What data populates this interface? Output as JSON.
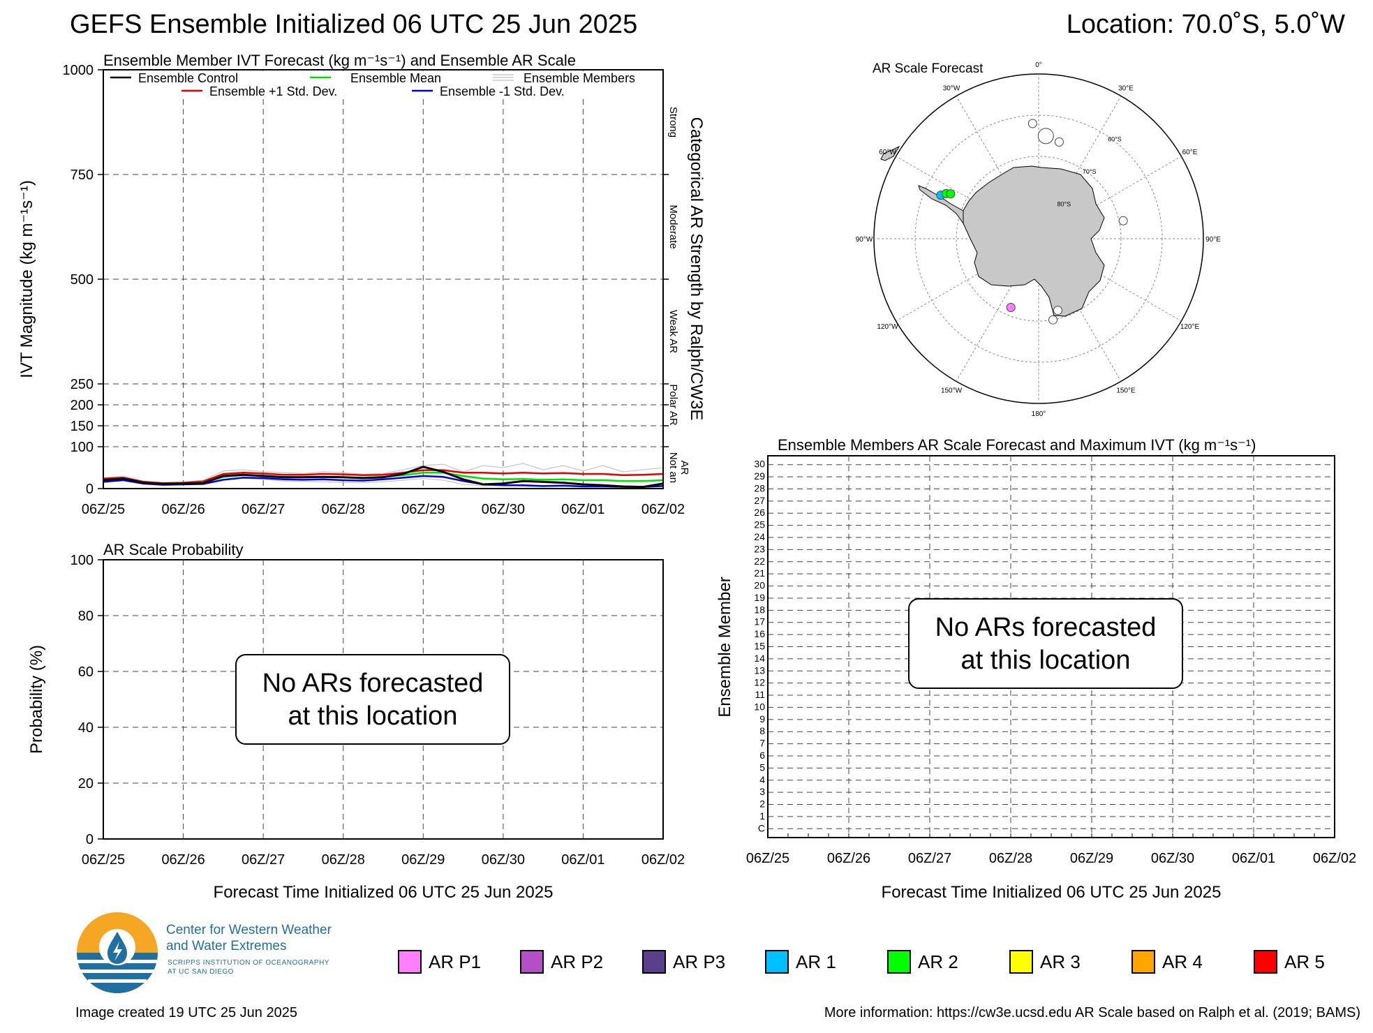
{
  "header": {
    "title": "GEFS Ensemble Initialized 06 UTC 25 Jun 2025",
    "location": "Location: 70.0˚S, 5.0˚W"
  },
  "footer": {
    "created": "Image created 19 UTC 25 Jun 2025",
    "more_info": "More information: https://cw3e.ucsd.edu AR Scale based on Ralph et al. (2019; BAMS)",
    "logo": {
      "line1": "Center for Western Weather",
      "line2": "and Water Extremes",
      "line3": "SCRIPPS INSTITUTION OF OCEANOGRAPHY",
      "line4": "AT UC SAN DIEGO"
    }
  },
  "ar_legend": [
    {
      "label": "AR P1",
      "color": "#ff80ff"
    },
    {
      "label": "AR P2",
      "color": "#b44fc8"
    },
    {
      "label": "AR P3",
      "color": "#5a3f8c"
    },
    {
      "label": "AR 1",
      "color": "#00bfff"
    },
    {
      "label": "AR 2",
      "color": "#00ff00"
    },
    {
      "label": "AR 3",
      "color": "#ffff00"
    },
    {
      "label": "AR 4",
      "color": "#ffa500"
    },
    {
      "label": "AR 5",
      "color": "#ff0000"
    }
  ],
  "time_ticks": [
    "06Z/25",
    "06Z/26",
    "06Z/27",
    "06Z/28",
    "06Z/29",
    "06Z/30",
    "06Z/01",
    "06Z/02"
  ],
  "chart_data": [
    {
      "id": "ivt",
      "type": "line",
      "title": "Ensemble Member IVT Forecast (kg m⁻¹s⁻¹) and Ensemble AR Scale",
      "ylabel": "IVT Magnitude (kg m⁻¹s⁻¹)",
      "right_label": "Categorical AR Strength by Ralph/CW3E",
      "ylim": [
        0,
        1000
      ],
      "y_ticks": [
        "0",
        "100",
        "150",
        "200",
        "250",
        "500",
        "750",
        "1000"
      ],
      "y_tick_values": [
        0,
        100,
        150,
        200,
        250,
        500,
        750,
        1000
      ],
      "categories_right": [
        "Not an AR",
        "Polar AR",
        "Weak AR",
        "Moderate",
        "Strong"
      ],
      "legend": {
        "control": "Ensemble Control",
        "mean": "Ensemble Mean",
        "members": "Ensemble Members",
        "plus_std": "Ensemble +1 Std. Dev.",
        "minus_std": "Ensemble -1 Std. Dev."
      },
      "x_hours": [
        0,
        6,
        12,
        18,
        24,
        30,
        36,
        42,
        48,
        54,
        60,
        66,
        72,
        78,
        84,
        90,
        96,
        102,
        108,
        114,
        120,
        126,
        132,
        138,
        144,
        150,
        156,
        162,
        168
      ],
      "series": [
        {
          "key": "members_hi",
          "color": "#c8c8c8",
          "values": [
            25,
            30,
            18,
            14,
            15,
            20,
            42,
            45,
            40,
            38,
            36,
            40,
            38,
            34,
            36,
            45,
            55,
            58,
            40,
            55,
            50,
            60,
            45,
            55,
            42,
            55,
            40,
            45,
            50
          ]
        },
        {
          "key": "members_lo",
          "color": "#c8c8c8",
          "values": [
            15,
            20,
            10,
            9,
            10,
            10,
            20,
            25,
            22,
            18,
            17,
            16,
            15,
            14,
            16,
            20,
            24,
            20,
            10,
            6,
            8,
            6,
            5,
            6,
            4,
            5,
            4,
            3,
            6
          ]
        },
        {
          "key": "plus_std",
          "color": "#e00000",
          "values": [
            24,
            26,
            16,
            13,
            14,
            17,
            35,
            38,
            36,
            33,
            33,
            35,
            34,
            32,
            33,
            38,
            44,
            44,
            38,
            38,
            36,
            38,
            36,
            37,
            35,
            35,
            32,
            33,
            35
          ]
        },
        {
          "key": "mean",
          "color": "#00e000",
          "values": [
            20,
            23,
            14,
            11,
            12,
            14,
            28,
            32,
            31,
            28,
            27,
            28,
            27,
            26,
            28,
            32,
            38,
            38,
            30,
            24,
            22,
            23,
            21,
            22,
            20,
            20,
            18,
            18,
            20
          ]
        },
        {
          "key": "minus_std",
          "color": "#0000e0",
          "values": [
            16,
            20,
            12,
            9,
            10,
            11,
            21,
            26,
            25,
            22,
            21,
            22,
            20,
            19,
            22,
            26,
            30,
            28,
            18,
            10,
            8,
            8,
            6,
            7,
            5,
            5,
            4,
            4,
            6
          ]
        },
        {
          "key": "control",
          "color": "#000000",
          "values": [
            20,
            24,
            14,
            11,
            12,
            13,
            30,
            33,
            30,
            27,
            27,
            28,
            27,
            25,
            27,
            35,
            52,
            40,
            22,
            10,
            12,
            18,
            16,
            14,
            10,
            8,
            5,
            4,
            12
          ]
        }
      ]
    },
    {
      "id": "prob",
      "type": "line",
      "title": "AR Scale Probability",
      "ylabel": "Probability (%)",
      "xlabel": "Forecast Time Initialized 06 UTC 25 Jun 2025",
      "ylim": [
        0,
        100
      ],
      "y_ticks": [
        "0",
        "20",
        "40",
        "60",
        "80",
        "100"
      ],
      "y_tick_values": [
        0,
        20,
        40,
        60,
        80,
        100
      ],
      "annotation": [
        "No ARs forecasted",
        "at this location"
      ]
    },
    {
      "id": "members",
      "type": "heatmap",
      "title": "Ensemble Members AR Scale Forecast and Maximum IVT (kg m⁻¹s⁻¹)",
      "ylabel": "Ensemble Member",
      "xlabel": "Forecast Time Initialized 06 UTC 25 Jun 2025",
      "members": [
        "C",
        "1",
        "2",
        "3",
        "4",
        "5",
        "6",
        "7",
        "8",
        "9",
        "10",
        "11",
        "12",
        "13",
        "14",
        "15",
        "16",
        "17",
        "18",
        "19",
        "20",
        "21",
        "22",
        "23",
        "24",
        "25",
        "26",
        "27",
        "28",
        "29",
        "30"
      ],
      "annotation": [
        "No ARs forecasted",
        "at this location"
      ]
    },
    {
      "id": "map",
      "type": "scatter",
      "title": "AR Scale Forecast",
      "lon_labels": [
        "0°",
        "30°E",
        "60°E",
        "90°E",
        "120°E",
        "150°E",
        "180°",
        "150°W",
        "120°W",
        "90°W",
        "60°W",
        "30°W"
      ],
      "lat_labels": [
        "60°S",
        "70°S",
        "80°S"
      ],
      "points": [
        {
          "lon": -3,
          "lat": -62,
          "color": "#ffffff"
        },
        {
          "lon": 4,
          "lat": -65,
          "color": "#ffffff"
        },
        {
          "lon": 12,
          "lat": -66,
          "color": "#ffffff"
        },
        {
          "lon": -66,
          "lat": -64,
          "color": "#00bfff"
        },
        {
          "lon": -64,
          "lat": -65,
          "color": "#00ff00"
        },
        {
          "lon": -63,
          "lat": -66,
          "color": "#00ff00"
        },
        {
          "lon": 78,
          "lat": -69,
          "color": "#ffffff"
        },
        {
          "lon": 165,
          "lat": -72,
          "color": "#ffffff"
        },
        {
          "lon": 170,
          "lat": -70,
          "color": "#ffffff"
        },
        {
          "lon": -158,
          "lat": -72,
          "color": "#ff80ff"
        }
      ]
    }
  ]
}
